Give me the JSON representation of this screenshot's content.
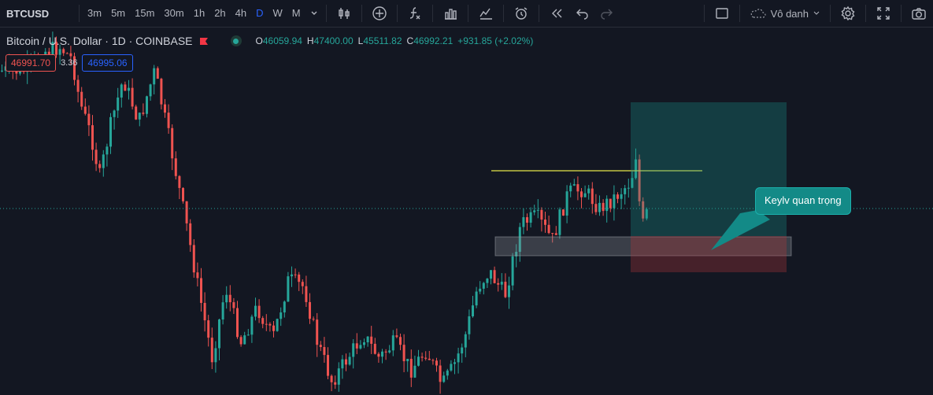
{
  "toolbar": {
    "symbol": "BTCUSD",
    "timeframes": [
      "3m",
      "5m",
      "15m",
      "30m",
      "1h",
      "2h",
      "4h",
      "D",
      "W",
      "M"
    ],
    "active_timeframe": "D",
    "icons": [
      "chevron-down-icon",
      "candlestick-icon",
      "add-compare-icon",
      "indicators-icon",
      "bar-chart-icon",
      "templates-icon",
      "alert-icon",
      "replay-icon",
      "undo-icon",
      "redo-icon"
    ],
    "layout_name": "Vô danh"
  },
  "legend": {
    "title": "Bitcoin / U.S. Dollar · 1D · COINBASE",
    "open_label": "O",
    "open": "46059.94",
    "high_label": "H",
    "high": "47400.00",
    "low_label": "L",
    "low": "45511.82",
    "close_label": "C",
    "close": "46992.21",
    "change": "+931.85 (+2.02%)"
  },
  "trade": {
    "sell_price": "46991.70",
    "spread": "3.36",
    "buy_price": "46995.06"
  },
  "annotation": {
    "label": "Keylv quan trọng"
  },
  "colors": {
    "up": "#26a69a",
    "down": "#ef5350",
    "background": "#131722",
    "accent": "#2962ff",
    "horizontal_line": "#e5e54a",
    "callout": "#138a87"
  }
}
